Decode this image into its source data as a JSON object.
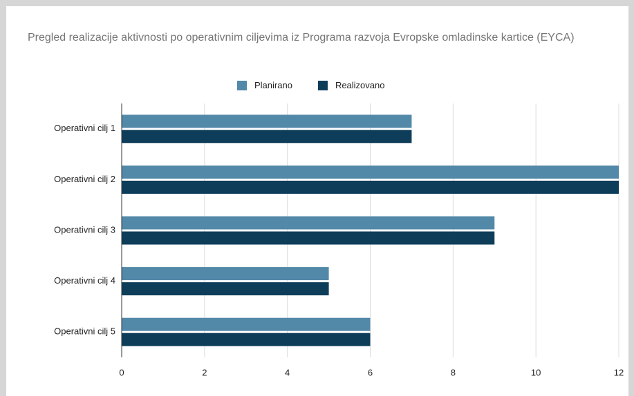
{
  "chart_data": {
    "type": "bar",
    "orientation": "horizontal",
    "title": "Pregled realizacije aktivnosti po operativnim ciljevima iz Programa razvoja Evropske omladinske kartice (EYCA)",
    "categories": [
      "Operativni cilj 1",
      "Operativni cilj 2",
      "Operativni cilj 3",
      "Operativni cilj 4",
      "Operativni cilj 5"
    ],
    "series": [
      {
        "name": "Planirano",
        "color": "#5288a8",
        "values": [
          7,
          12,
          9,
          5,
          6
        ]
      },
      {
        "name": "Realizovano",
        "color": "#0e3d5a",
        "values": [
          7,
          12,
          9,
          5,
          6
        ]
      }
    ],
    "xlim": [
      0,
      12
    ],
    "xticks": [
      0,
      2,
      4,
      6,
      8,
      10,
      12
    ],
    "grid": true,
    "legend": "top"
  }
}
